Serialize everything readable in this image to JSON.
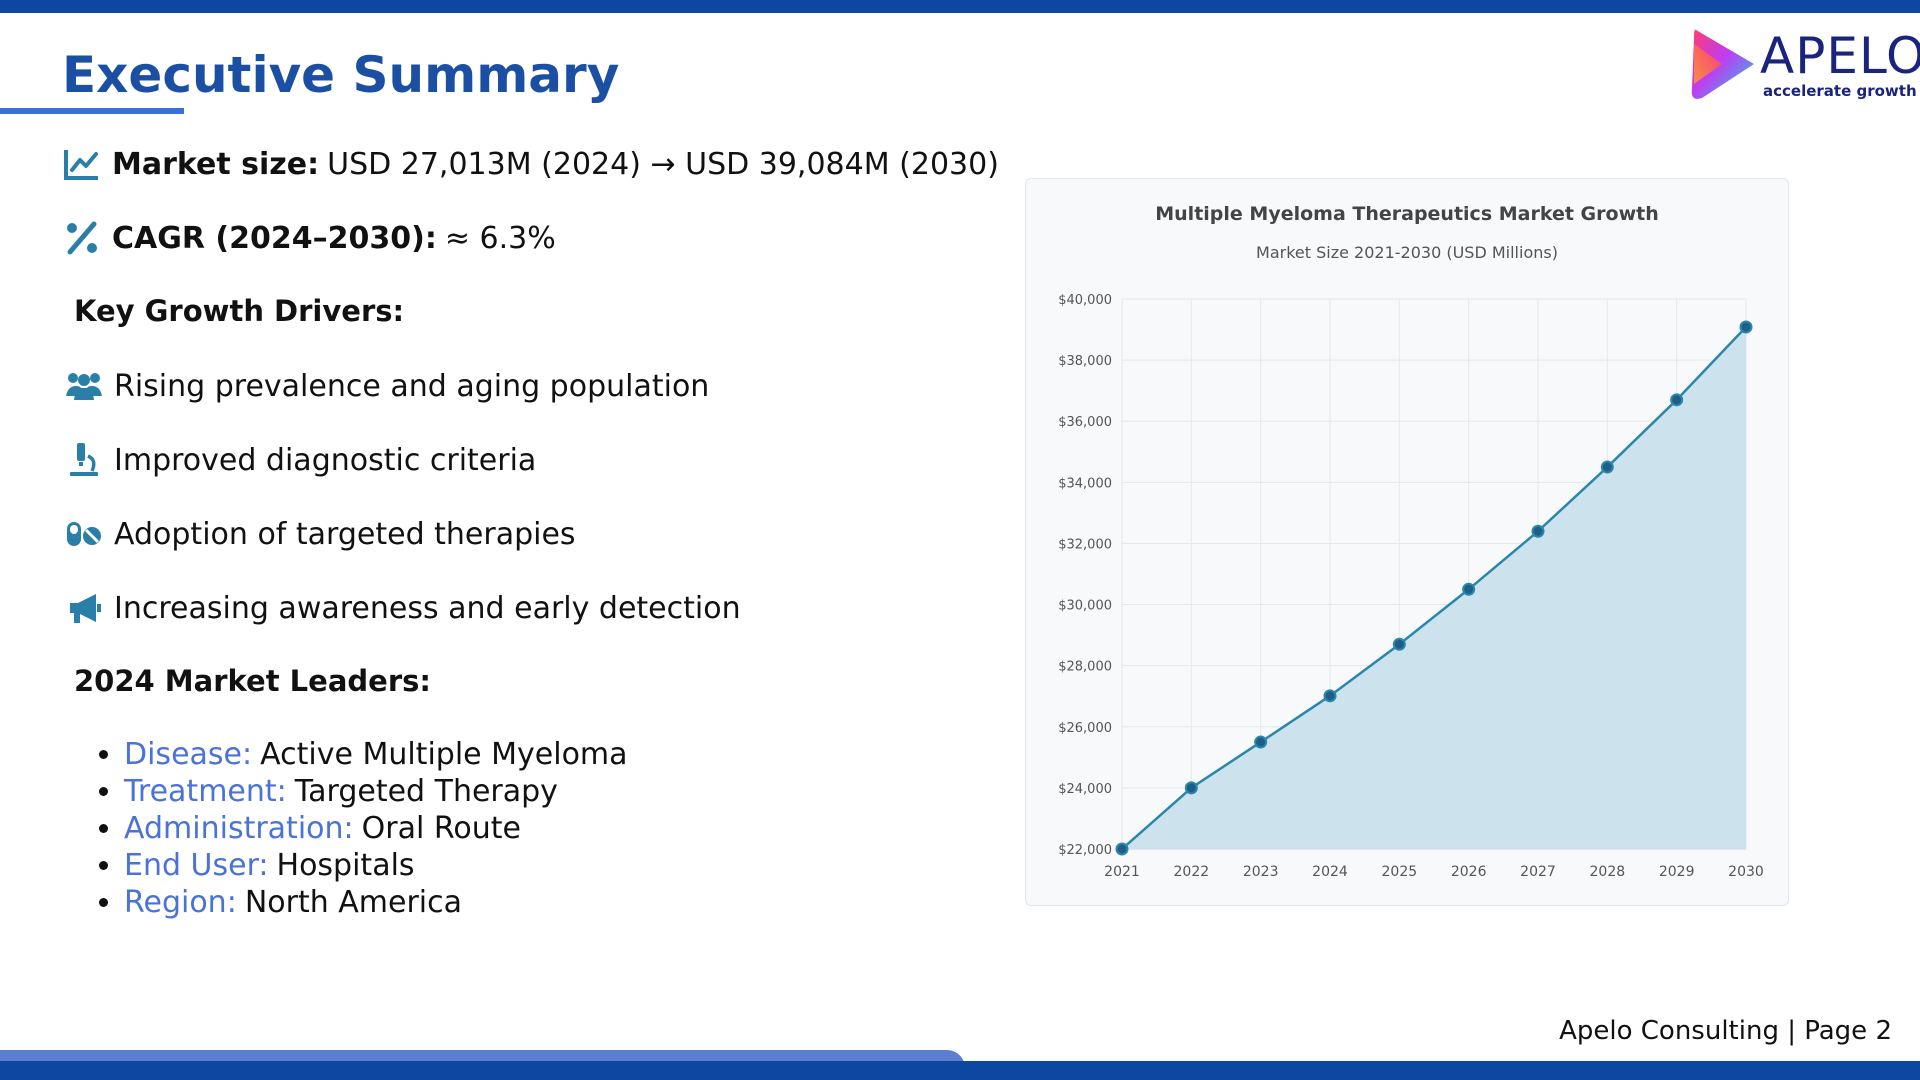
{
  "slide": {
    "title": "Executive Summary",
    "footer": "Apelo Consulting | Page 2"
  },
  "logo": {
    "name": "APELO",
    "tagline": "accelerate growth"
  },
  "highlights": {
    "market_size_label": "Market size:",
    "market_size_value": "USD 27,013M (2024) → USD 39,084M (2030)",
    "cagr_label": "CAGR (2024–2030):",
    "cagr_value": "≈ 6.3%"
  },
  "drivers": {
    "heading": "Key Growth Drivers:",
    "items": [
      {
        "icon": "users-icon",
        "text": "Rising prevalence and aging population"
      },
      {
        "icon": "microscope-icon",
        "text": "Improved diagnostic criteria"
      },
      {
        "icon": "pills-icon",
        "text": "Adoption of targeted therapies"
      },
      {
        "icon": "megaphone-icon",
        "text": "Increasing awareness and early detection"
      }
    ]
  },
  "leaders": {
    "heading": "2024 Market Leaders:",
    "items": [
      {
        "key": "Disease:",
        "value": "Active Multiple Myeloma"
      },
      {
        "key": "Treatment:",
        "value": "Targeted Therapy"
      },
      {
        "key": "Administration:",
        "value": "Oral Route"
      },
      {
        "key": "End User:",
        "value": "Hospitals"
      },
      {
        "key": "Region:",
        "value": "North America"
      }
    ]
  },
  "colors": {
    "brand_blue": "#1a4fa3",
    "accent_blue": "#4a72d8",
    "icon_teal": "#2a7fa8",
    "line": "#2b86ad",
    "area": "#c9e2ec"
  },
  "chart_data": {
    "type": "area",
    "title": "Multiple Myeloma Therapeutics Market Growth",
    "subtitle": "Market Size 2021-2030 (USD Millions)",
    "xlabel": "",
    "ylabel": "",
    "categories": [
      "2021",
      "2022",
      "2023",
      "2024",
      "2025",
      "2026",
      "2027",
      "2028",
      "2029",
      "2030"
    ],
    "series": [
      {
        "values": [
          22000,
          24000,
          25500,
          27013,
          28700,
          30500,
          32400,
          34500,
          36700,
          39084
        ]
      }
    ],
    "ylim": [
      22000,
      40000
    ],
    "yticks": [
      "$22,000",
      "$24,000",
      "$26,000",
      "$28,000",
      "$30,000",
      "$32,000",
      "$34,000",
      "$36,000",
      "$38,000",
      "$40,000"
    ],
    "grid": true,
    "legend": "none"
  }
}
